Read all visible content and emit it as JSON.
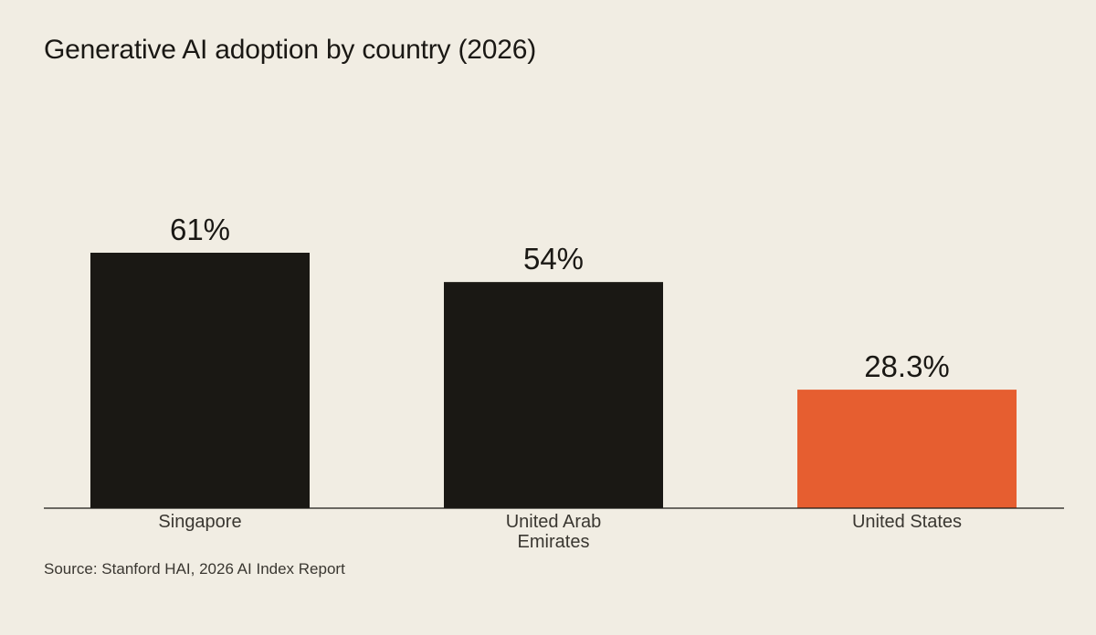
{
  "chart_data": {
    "type": "bar",
    "title": "Generative AI adoption by country (2026)",
    "categories": [
      "Singapore",
      "United Arab Emirates",
      "United States"
    ],
    "category_lines": [
      [
        "Singapore"
      ],
      [
        "United Arab",
        "Emirates"
      ],
      [
        "United States"
      ]
    ],
    "values": [
      61,
      54,
      28.3
    ],
    "value_labels": [
      "61%",
      "54%",
      "28.3%"
    ],
    "ylim": [
      0,
      100
    ],
    "grid": false,
    "legend": "none",
    "xlabel": "",
    "ylabel": "",
    "bar_colors": [
      "#1a1814",
      "#1a1814",
      "#e65e30"
    ],
    "source": "Source: Stanford HAI, 2026 AI Index Report"
  }
}
